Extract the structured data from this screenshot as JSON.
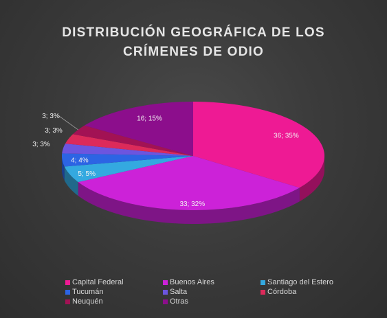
{
  "chart_data": {
    "type": "pie",
    "title_lines": [
      "DISTRIBUCIÓN GEOGRÁFICA DE LOS",
      "CRÍMENES DE ODIO"
    ],
    "slices": [
      {
        "name": "Capital Federal",
        "value": 36,
        "percent": 35,
        "label": "36; 35%",
        "color": "#ee1a94"
      },
      {
        "name": "Buenos Aires",
        "value": 33,
        "percent": 32,
        "label": "33; 32%",
        "color": "#cc22d8"
      },
      {
        "name": "Santiago del Estero",
        "value": 5,
        "percent": 5,
        "label": "5; 5%",
        "color": "#34a9e0"
      },
      {
        "name": "Tucumán",
        "value": 4,
        "percent": 4,
        "label": "4; 4%",
        "color": "#2c64e4"
      },
      {
        "name": "Salta",
        "value": 3,
        "percent": 3,
        "label": "3; 3%",
        "color": "#6c55df"
      },
      {
        "name": "Córdoba",
        "value": 3,
        "percent": 3,
        "label": "3; 3%",
        "color": "#dc2a5a"
      },
      {
        "name": "Neuquén",
        "value": 3,
        "percent": 3,
        "label": "3; 3%",
        "color": "#a21254"
      },
      {
        "name": "Otras",
        "value": 16,
        "percent": 15,
        "label": "16; 15%",
        "color": "#8c0e8c"
      }
    ],
    "legend_position": "bottom"
  }
}
